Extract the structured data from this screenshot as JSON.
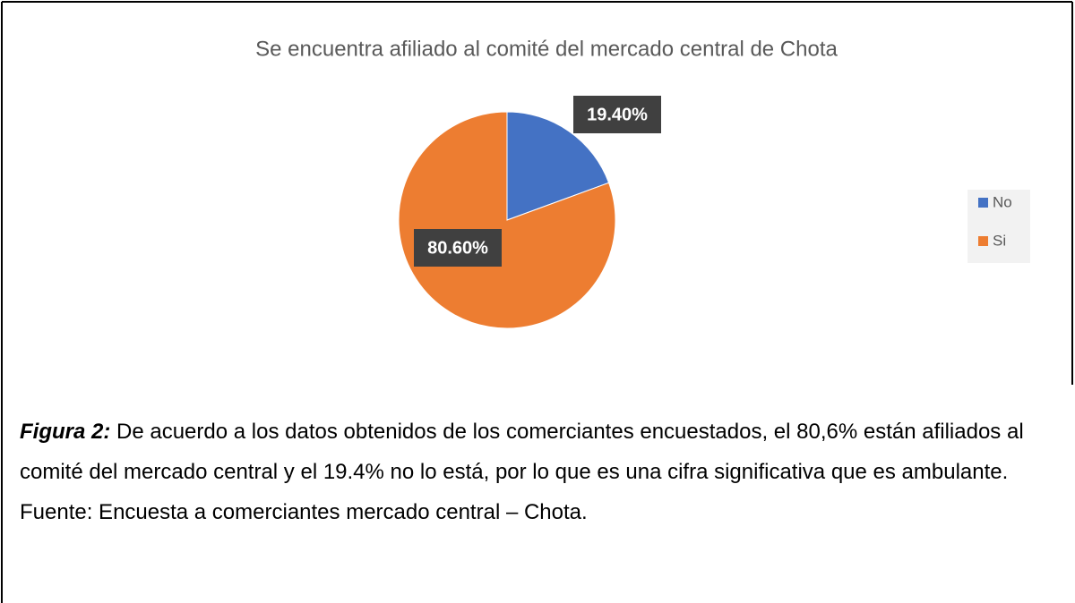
{
  "chart_data": {
    "type": "pie",
    "title": "Se encuentra afiliado al comité del mercado central de Chota",
    "categories": [
      "No",
      "Si"
    ],
    "values": [
      19.4,
      80.6
    ],
    "value_labels": [
      "19.40%",
      "80.60%"
    ],
    "colors": [
      "#4472c4",
      "#ed7d31"
    ],
    "legend": "right"
  },
  "caption": {
    "label": "Figura 2:",
    "text": "De acuerdo a los datos obtenidos de los comerciantes encuestados, el 80,6% están afiliados al comité del mercado central y el 19.4% no lo está, por lo que es una cifra significativa que es ambulante.",
    "source": "Fuente: Encuesta a comerciantes mercado central – Chota."
  }
}
